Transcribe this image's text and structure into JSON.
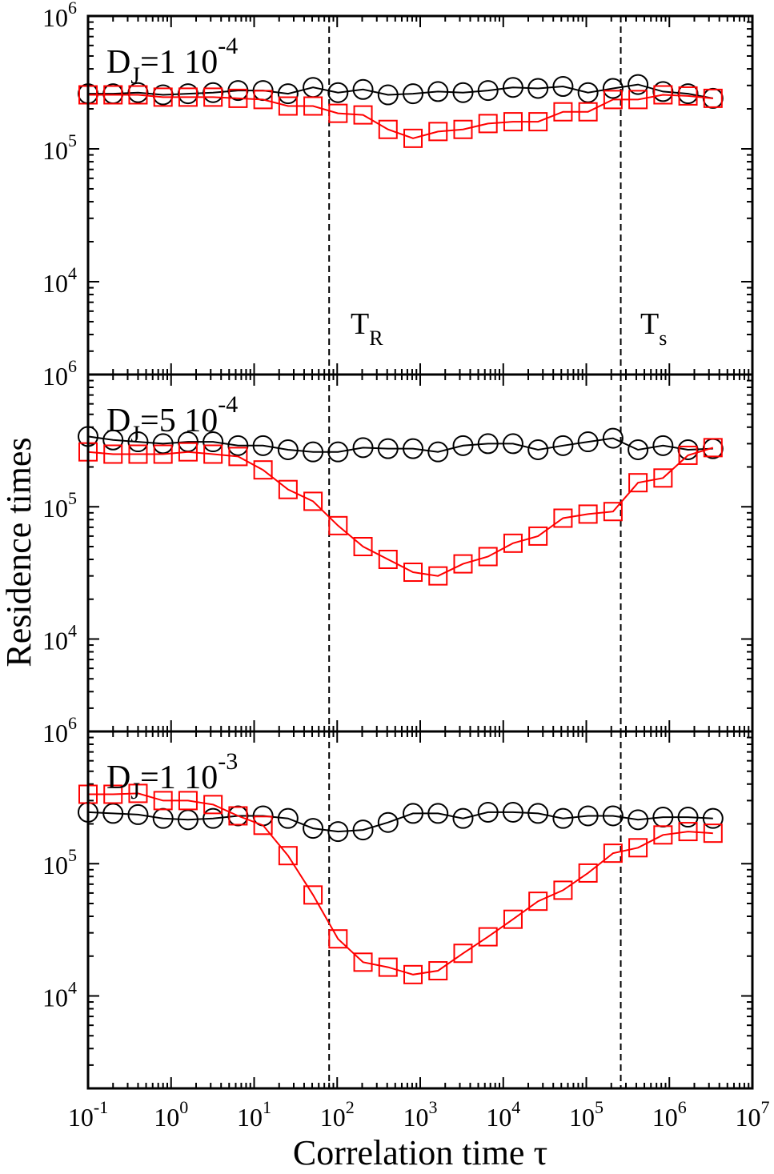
{
  "chart_data": {
    "type": "line",
    "x_scale": "log",
    "y_scale": "log",
    "xlabel": "Correlation time τ",
    "ylabel": "Residence times",
    "xlim": [
      0.1,
      10000000
    ],
    "x_tick_labels": [
      {
        "base": "10",
        "exp": "-1"
      },
      {
        "base": "10",
        "exp": "0"
      },
      {
        "base": "10",
        "exp": "1"
      },
      {
        "base": "10",
        "exp": "2"
      },
      {
        "base": "10",
        "exp": "3"
      },
      {
        "base": "10",
        "exp": "4"
      },
      {
        "base": "10",
        "exp": "5"
      },
      {
        "base": "10",
        "exp": "6"
      },
      {
        "base": "10",
        "exp": "7"
      }
    ],
    "vlines": [
      {
        "x": 80,
        "label": "T",
        "sub": "R"
      },
      {
        "x": 260000,
        "label": "T",
        "sub": "s"
      }
    ],
    "x": [
      0.1,
      0.2,
      0.4,
      0.8,
      1.6,
      3.2,
      6.4,
      12.8,
      25.6,
      51.2,
      102.4,
      204.8,
      409.6,
      819.2,
      1638.4,
      3276.8,
      6553.6,
      13107.2,
      26214.4,
      52428.8,
      104857.6,
      209715.2,
      419430.4,
      838860.8,
      1677721.6,
      3355443.2
    ],
    "panels": [
      {
        "label": {
          "pre": "D",
          "sub": "J",
          "mid": "=1  10",
          "sup": "-4"
        },
        "ylim": [
          2000,
          1000000
        ],
        "y_tick_labels": [
          {
            "base": "10",
            "exp": "4",
            "value": 10000
          },
          {
            "base": "10",
            "exp": "5",
            "value": 100000
          },
          {
            "base": "10",
            "exp": "6",
            "value": 1000000
          }
        ],
        "series": [
          {
            "marker": "circle",
            "color": "#000000",
            "values": [
              260000,
              260000,
              265000,
              255000,
              260000,
              265000,
              275000,
              275000,
              260000,
              290000,
              265000,
              280000,
              255000,
              260000,
              270000,
              265000,
              275000,
              290000,
              285000,
              295000,
              265000,
              285000,
              305000,
              270000,
              260000,
              240000
            ]
          },
          {
            "marker": "square",
            "color": "#ff0000",
            "values": [
              255000,
              255000,
              255000,
              245000,
              245000,
              245000,
              240000,
              235000,
              210000,
              210000,
              185000,
              180000,
              140000,
              120000,
              135000,
              140000,
              155000,
              160000,
              160000,
              190000,
              190000,
              235000,
              235000,
              255000,
              250000,
              240000
            ]
          }
        ]
      },
      {
        "label": {
          "pre": "D",
          "sub": "J",
          "mid": "=5  10",
          "sup": "-4"
        },
        "ylim": [
          2000,
          1000000
        ],
        "y_tick_labels": [
          {
            "base": "10",
            "exp": "4",
            "value": 10000
          },
          {
            "base": "10",
            "exp": "5",
            "value": 100000
          },
          {
            "base": "10",
            "exp": "6",
            "value": 1000000
          }
        ],
        "series": [
          {
            "marker": "circle",
            "color": "#000000",
            "values": [
              340000,
              320000,
              310000,
              300000,
              310000,
              310000,
              290000,
              290000,
              270000,
              260000,
              260000,
              280000,
              275000,
              275000,
              260000,
              290000,
              300000,
              300000,
              270000,
              290000,
              310000,
              330000,
              270000,
              290000,
              270000,
              275000
            ]
          },
          {
            "marker": "square",
            "color": "#ff0000",
            "values": [
              260000,
              250000,
              250000,
              250000,
              260000,
              250000,
              240000,
              190000,
              135000,
              110000,
              72000,
              50000,
              40000,
              32000,
              30000,
              37000,
              42000,
              53000,
              60000,
              82000,
              88000,
              92000,
              152000,
              165000,
              245000,
              280000
            ]
          }
        ]
      },
      {
        "label": {
          "pre": "D",
          "sub": "J",
          "mid": "=1  10",
          "sup": "-3"
        },
        "ylim": [
          2000,
          1000000
        ],
        "y_tick_labels": [
          {
            "base": "10",
            "exp": "4",
            "value": 10000
          },
          {
            "base": "10",
            "exp": "5",
            "value": 100000
          },
          {
            "base": "10",
            "exp": "6",
            "value": 1000000
          }
        ],
        "series": [
          {
            "marker": "circle",
            "color": "#000000",
            "values": [
              245000,
              240000,
              235000,
              220000,
              215000,
              220000,
              230000,
              230000,
              220000,
              185000,
              175000,
              180000,
              205000,
              240000,
              240000,
              220000,
              245000,
              245000,
              240000,
              220000,
              230000,
              230000,
              215000,
              225000,
              225000,
              220000
            ]
          },
          {
            "marker": "square",
            "color": "#ff0000",
            "values": [
              335000,
              335000,
              340000,
              300000,
              300000,
              280000,
              230000,
              195000,
              115000,
              58000,
              27000,
              18000,
              16500,
              14500,
              15500,
              21000,
              28000,
              38000,
              52000,
              63000,
              85000,
              120000,
              132000,
              165000,
              175000,
              170000
            ]
          }
        ]
      }
    ]
  }
}
